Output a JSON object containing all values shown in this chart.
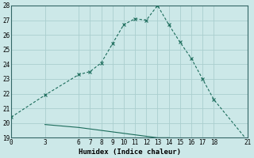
{
  "xlabel": "Humidex (Indice chaleur)",
  "ylabel": "",
  "bg_color": "#cce8e8",
  "grid_color": "#aacece",
  "line_color": "#1a6b5a",
  "x_upper": [
    0,
    3,
    6,
    7,
    8,
    9,
    10,
    11,
    12,
    13,
    14,
    15,
    16,
    17,
    18,
    21
  ],
  "y_upper": [
    20.4,
    21.9,
    23.3,
    23.5,
    24.1,
    25.4,
    26.7,
    27.1,
    27.0,
    28.0,
    26.7,
    25.5,
    24.4,
    23.0,
    21.6,
    18.8
  ],
  "x_lower": [
    3,
    6,
    7,
    8,
    9,
    10,
    11,
    12,
    13,
    14,
    15,
    16,
    17,
    18,
    21
  ],
  "y_lower": [
    19.9,
    19.7,
    19.6,
    19.5,
    19.4,
    19.3,
    19.2,
    19.1,
    19.0,
    19.0,
    18.9,
    18.9,
    18.9,
    18.9,
    18.8
  ],
  "xlim": [
    0,
    21
  ],
  "ylim": [
    19,
    28
  ],
  "xticks": [
    0,
    3,
    6,
    7,
    8,
    9,
    10,
    11,
    12,
    13,
    14,
    15,
    16,
    17,
    18,
    21
  ],
  "yticks": [
    19,
    20,
    21,
    22,
    23,
    24,
    25,
    26,
    27,
    28
  ],
  "tick_fontsize": 5.5,
  "xlabel_fontsize": 6.5
}
